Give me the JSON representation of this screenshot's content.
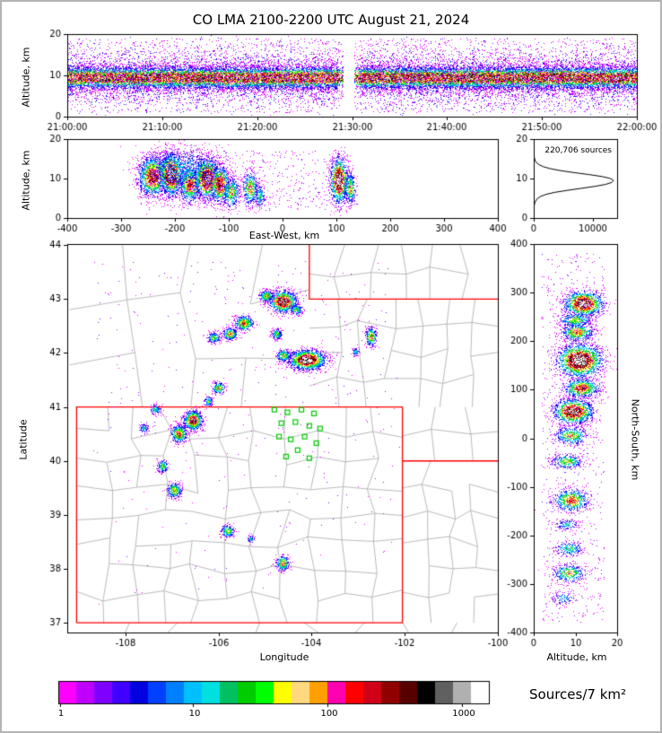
{
  "title": "CO LMA 2100-2200 UTC August 21, 2024",
  "colorbar": {
    "label": "Sources/7 km²",
    "ticks": [
      "1",
      "10",
      "100",
      "1000"
    ],
    "colors": [
      "#ff00ff",
      "#c000ff",
      "#8000ff",
      "#4000ff",
      "#0000e0",
      "#0040ff",
      "#0080ff",
      "#00c0ff",
      "#00e0e0",
      "#00c060",
      "#00cc00",
      "#00ff00",
      "#ffff00",
      "#ffd880",
      "#ffa000",
      "#ff00b0",
      "#ff0000",
      "#d00018",
      "#900000",
      "#580000",
      "#000000",
      "#606060",
      "#b0b0b0",
      "#ffffff"
    ]
  },
  "map_colors": {
    "state_border": "#ff0000",
    "county": "#aaaaaa",
    "station": "#00cc00"
  },
  "chart_data": [
    {
      "id": "time_height",
      "type": "scatter",
      "ylabel": "Altitude, km",
      "xlim": [
        0,
        3600
      ],
      "ylim": [
        0,
        20
      ],
      "xtick_values": [
        0,
        600,
        1200,
        1800,
        2400,
        3000,
        3600
      ],
      "xtick_labels": [
        "21:00:00",
        "21:10:00",
        "21:20:00",
        "21:30:00",
        "21:40:00",
        "21:50:00",
        "22:00:00"
      ],
      "ytick_values": [
        0,
        10,
        20
      ],
      "band": {
        "center_km": 9.4,
        "core_sigma": 1.35,
        "halo_sigma": 3.2,
        "n": 36000,
        "max_level": 0.93
      },
      "gap_s": [
        1745,
        1815
      ],
      "sparse": {
        "n": 2600,
        "alt_range": [
          1,
          19
        ]
      }
    },
    {
      "id": "ew_altitude",
      "type": "scatter",
      "xlabel": "East-West, km",
      "ylabel": "Altitude, km",
      "xlim": [
        -400,
        400
      ],
      "ylim": [
        0,
        20
      ],
      "xtick_values": [
        -400,
        -300,
        -200,
        -100,
        0,
        100,
        200,
        300,
        400
      ],
      "ytick_values": [
        0,
        10,
        20
      ],
      "clusters": [
        [
          -240,
          10.5,
          14,
          2.6,
          1400,
          0.8
        ],
        [
          -207,
          11,
          11,
          2.7,
          1700,
          0.96
        ],
        [
          -172,
          8.5,
          10,
          2.3,
          900,
          0.72
        ],
        [
          -140,
          10,
          12,
          2.6,
          1500,
          0.92
        ],
        [
          -116,
          8.5,
          9,
          2.4,
          900,
          0.8
        ],
        [
          -95,
          6.5,
          8,
          2.0,
          450,
          0.55
        ],
        [
          -185,
          12.5,
          38,
          2.8,
          900,
          0.32
        ],
        [
          -60,
          7.5,
          7,
          2.2,
          420,
          0.6
        ],
        [
          -42,
          5.5,
          5,
          1.6,
          180,
          0.4
        ],
        [
          105,
          9.5,
          8,
          2.9,
          1300,
          0.96
        ],
        [
          126,
          7.5,
          5,
          2.1,
          350,
          0.58
        ]
      ],
      "sparse": {
        "n": 600,
        "x_range": [
          -270,
          140
        ],
        "alt_range": [
          2,
          17
        ]
      }
    },
    {
      "id": "alt_histogram",
      "type": "line",
      "annotation": "220,706 sources",
      "xlim": [
        0,
        14000
      ],
      "ylim": [
        0,
        20
      ],
      "xtick_values": [
        0,
        10000
      ],
      "ytick_values": [
        0,
        10,
        20
      ],
      "points": [
        [
          0,
          0
        ],
        [
          1,
          2
        ],
        [
          2,
          15
        ],
        [
          3,
          60
        ],
        [
          4,
          200
        ],
        [
          5,
          650
        ],
        [
          5.5,
          1200
        ],
        [
          6,
          2100
        ],
        [
          6.5,
          3500
        ],
        [
          7,
          5600
        ],
        [
          7.5,
          7900
        ],
        [
          8,
          10200
        ],
        [
          8.5,
          12000
        ],
        [
          9,
          13100
        ],
        [
          9.5,
          13400
        ],
        [
          10,
          12900
        ],
        [
          10.5,
          11500
        ],
        [
          11,
          9300
        ],
        [
          11.5,
          6800
        ],
        [
          12,
          4500
        ],
        [
          12.5,
          2800
        ],
        [
          13,
          1600
        ],
        [
          13.5,
          900
        ],
        [
          14,
          480
        ],
        [
          14.5,
          260
        ],
        [
          15,
          140
        ],
        [
          16,
          45
        ],
        [
          17,
          14
        ],
        [
          18,
          4
        ],
        [
          20,
          0
        ]
      ]
    },
    {
      "id": "plan_view",
      "type": "map",
      "xlabel": "Longitude",
      "ylabel": "Latitude",
      "xlim": [
        -109.25,
        -100
      ],
      "ylim": [
        36.82,
        44.02
      ],
      "xtick_values": [
        -108,
        -106,
        -104,
        -102,
        -100
      ],
      "ytick_values": [
        37,
        38,
        39,
        40,
        41,
        42,
        43,
        44
      ],
      "state_borders": [
        [
          [
            -109.05,
            37
          ],
          [
            -102.05,
            37
          ],
          [
            -102.05,
            41
          ],
          [
            -109.05,
            41
          ],
          [
            -109.05,
            37
          ]
        ],
        [
          [
            -104.05,
            44.02
          ],
          [
            -104.05,
            43
          ],
          [
            -100,
            43
          ]
        ],
        [
          [
            -102.05,
            40
          ],
          [
            -100,
            40
          ]
        ]
      ],
      "county_regions": [
        [
          -109.2,
          -104.05,
          41,
          44,
          4,
          3
        ],
        [
          -104.05,
          -100,
          43,
          44,
          6,
          2
        ],
        [
          -104.05,
          -100,
          41,
          43,
          7,
          4
        ],
        [
          -102.05,
          -100,
          40,
          41,
          3,
          2
        ],
        [
          -109.05,
          -102.05,
          37,
          41,
          11,
          8
        ],
        [
          -102.05,
          -100,
          37,
          40,
          4,
          6
        ],
        [
          -109.2,
          -106,
          36.82,
          37,
          3,
          1
        ],
        [
          -106,
          -100,
          36.82,
          37,
          6,
          1
        ]
      ],
      "stations": [
        [
          -104.8,
          40.95
        ],
        [
          -104.52,
          40.9
        ],
        [
          -104.22,
          40.95
        ],
        [
          -103.95,
          40.88
        ],
        [
          -104.65,
          40.7
        ],
        [
          -104.35,
          40.72
        ],
        [
          -104.05,
          40.65
        ],
        [
          -103.82,
          40.6
        ],
        [
          -104.7,
          40.45
        ],
        [
          -104.45,
          40.4
        ],
        [
          -104.15,
          40.45
        ],
        [
          -103.9,
          40.33
        ],
        [
          -104.3,
          40.2
        ],
        [
          -104.55,
          40.08
        ],
        [
          -104.05,
          40.05
        ]
      ],
      "clusters": [
        [
          -104.62,
          42.95,
          0.15,
          0.1,
          1200,
          0.9
        ],
        [
          -104.97,
          43.05,
          0.08,
          0.06,
          280,
          0.55
        ],
        [
          -104.33,
          42.8,
          0.07,
          0.05,
          220,
          0.5
        ],
        [
          -105.45,
          42.55,
          0.1,
          0.07,
          480,
          0.68
        ],
        [
          -105.75,
          42.35,
          0.08,
          0.06,
          330,
          0.6
        ],
        [
          -106.1,
          42.28,
          0.07,
          0.05,
          230,
          0.5
        ],
        [
          -104.75,
          42.35,
          0.06,
          0.05,
          180,
          0.48
        ],
        [
          -104.1,
          41.87,
          0.2,
          0.09,
          1700,
          0.99
        ],
        [
          -104.6,
          41.95,
          0.08,
          0.06,
          280,
          0.55
        ],
        [
          -102.72,
          42.3,
          0.06,
          0.09,
          300,
          0.62
        ],
        [
          -103.05,
          42.02,
          0.04,
          0.04,
          90,
          0.4
        ],
        [
          -106.0,
          41.35,
          0.07,
          0.06,
          230,
          0.55
        ],
        [
          -106.22,
          41.1,
          0.05,
          0.05,
          140,
          0.45
        ],
        [
          -106.55,
          40.75,
          0.1,
          0.09,
          850,
          0.85
        ],
        [
          -106.85,
          40.5,
          0.09,
          0.08,
          480,
          0.7
        ],
        [
          -107.35,
          40.95,
          0.06,
          0.05,
          140,
          0.4
        ],
        [
          -107.6,
          40.6,
          0.05,
          0.05,
          100,
          0.35
        ],
        [
          -107.2,
          39.9,
          0.06,
          0.06,
          190,
          0.5
        ],
        [
          -106.95,
          39.45,
          0.08,
          0.07,
          330,
          0.6
        ],
        [
          -105.8,
          38.7,
          0.07,
          0.06,
          240,
          0.55
        ],
        [
          -104.62,
          38.1,
          0.07,
          0.07,
          330,
          0.65
        ],
        [
          -105.3,
          38.55,
          0.04,
          0.04,
          80,
          0.35
        ]
      ],
      "sparse": {
        "n": 380,
        "lon_range": [
          -108.7,
          -102.1
        ],
        "lat_range": [
          37.2,
          43.7
        ]
      }
    },
    {
      "id": "ns_altitude",
      "type": "scatter",
      "xlabel": "Altitude, km",
      "ylabel": "North-South, km",
      "xlim": [
        0,
        20
      ],
      "ylim": [
        -400,
        400
      ],
      "xtick_values": [
        0,
        10,
        20
      ],
      "ytick_values": [
        -400,
        -300,
        -200,
        -100,
        0,
        100,
        200,
        300,
        400
      ],
      "clusters": [
        [
          12,
          277,
          2.4,
          13,
          1400,
          0.92
        ],
        [
          10,
          243,
          2.0,
          8,
          380,
          0.5
        ],
        [
          10.5,
          218,
          2.0,
          9,
          550,
          0.65
        ],
        [
          11,
          160,
          2.7,
          17,
          2000,
          0.99
        ],
        [
          11.5,
          103,
          2.2,
          10,
          750,
          0.72
        ],
        [
          9.5,
          55,
          2.4,
          13,
          1300,
          0.9
        ],
        [
          9,
          5,
          2.0,
          10,
          480,
          0.55
        ],
        [
          8,
          -48,
          2.0,
          8,
          330,
          0.5
        ],
        [
          9,
          -128,
          2.2,
          12,
          650,
          0.65
        ],
        [
          8,
          -178,
          1.5,
          6,
          140,
          0.35
        ],
        [
          8.5,
          -228,
          1.8,
          8,
          240,
          0.42
        ],
        [
          8.5,
          -278,
          2.0,
          10,
          380,
          0.55
        ],
        [
          7,
          -330,
          1.5,
          8,
          120,
          0.3
        ]
      ],
      "sparse": {
        "n": 700,
        "alt_range": [
          2,
          17
        ],
        "ns_range": [
          -380,
          380
        ]
      }
    }
  ]
}
